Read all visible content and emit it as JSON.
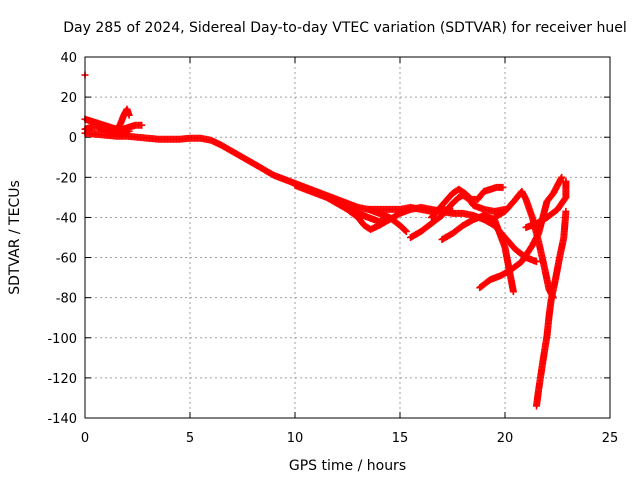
{
  "chart_data": {
    "type": "scatter",
    "title": "Day 285 of 2024, Sidereal Day-to-day VTEC variation (SDTVAR) for receiver huel",
    "xlabel": "GPS time / hours",
    "ylabel": "SDTVAR / TECUs",
    "xlim": [
      0,
      25
    ],
    "ylim": [
      -140,
      40
    ],
    "xticks": [
      0,
      5,
      10,
      15,
      20,
      25
    ],
    "yticks": [
      40,
      20,
      0,
      -20,
      -40,
      -60,
      -80,
      -100,
      -120,
      -140
    ],
    "grid": true,
    "marker": "+",
    "color": "#ff0000",
    "series": [
      {
        "name": "trace-main",
        "points": [
          [
            0.0,
            2
          ],
          [
            0.5,
            1.5
          ],
          [
            1.0,
            1
          ],
          [
            1.5,
            0.5
          ],
          [
            2.0,
            0.5
          ],
          [
            2.5,
            0
          ],
          [
            3.0,
            -0.5
          ],
          [
            3.5,
            -1
          ],
          [
            4.0,
            -1
          ],
          [
            4.5,
            -1
          ],
          [
            5.0,
            -0.5
          ],
          [
            5.5,
            -0.5
          ],
          [
            6.0,
            -1.5
          ],
          [
            6.5,
            -4
          ],
          [
            7.0,
            -7
          ],
          [
            7.5,
            -10
          ],
          [
            8.0,
            -13
          ],
          [
            8.5,
            -16
          ],
          [
            9.0,
            -19
          ],
          [
            9.5,
            -21
          ],
          [
            10.0,
            -23
          ],
          [
            10.5,
            -25
          ],
          [
            11.0,
            -27
          ],
          [
            11.5,
            -29
          ],
          [
            12.0,
            -31
          ],
          [
            12.5,
            -33
          ],
          [
            13.0,
            -35
          ],
          [
            13.5,
            -36
          ],
          [
            14.0,
            -36
          ],
          [
            14.5,
            -36
          ],
          [
            15.0,
            -36
          ],
          [
            15.5,
            -35
          ],
          [
            16.0,
            -36
          ],
          [
            16.5,
            -37
          ],
          [
            17.0,
            -36
          ],
          [
            17.5,
            -37
          ]
        ]
      },
      {
        "name": "trace-start-upper",
        "points": [
          [
            0.0,
            9
          ],
          [
            0.3,
            8
          ],
          [
            0.6,
            7
          ],
          [
            0.9,
            6
          ],
          [
            1.2,
            5
          ],
          [
            1.5,
            4
          ],
          [
            1.8,
            4
          ],
          [
            2.1,
            5
          ],
          [
            2.4,
            6
          ],
          [
            2.7,
            6
          ]
        ]
      },
      {
        "name": "trace-start-lower",
        "points": [
          [
            0.0,
            4
          ],
          [
            0.3,
            5
          ],
          [
            0.6,
            5
          ],
          [
            0.9,
            4
          ],
          [
            1.2,
            3
          ],
          [
            1.5,
            2
          ],
          [
            1.8,
            2
          ],
          [
            2.1,
            3
          ]
        ]
      },
      {
        "name": "trace-start-spike",
        "points": [
          [
            1.5,
            3
          ],
          [
            1.7,
            7
          ],
          [
            1.85,
            11
          ],
          [
            2.0,
            14
          ],
          [
            2.1,
            11
          ]
        ]
      },
      {
        "name": "trace-outlier",
        "points": [
          [
            0.0,
            31
          ]
        ]
      },
      {
        "name": "trace-mid",
        "points": [
          [
            10.0,
            -24
          ],
          [
            10.5,
            -26
          ],
          [
            11.0,
            -28
          ],
          [
            11.5,
            -30
          ],
          [
            12.0,
            -33
          ],
          [
            12.5,
            -36
          ],
          [
            13.0,
            -38
          ],
          [
            13.5,
            -40
          ],
          [
            14.0,
            -42
          ],
          [
            14.5,
            -41
          ],
          [
            15.0,
            -38
          ],
          [
            15.5,
            -36
          ],
          [
            16.0,
            -35
          ],
          [
            16.5,
            -36
          ],
          [
            17.0,
            -37
          ],
          [
            17.5,
            -38
          ],
          [
            18.0,
            -38
          ],
          [
            18.5,
            -39
          ],
          [
            19.0,
            -41
          ],
          [
            19.5,
            -44
          ],
          [
            20.0,
            -50
          ],
          [
            20.5,
            -56
          ],
          [
            21.0,
            -60
          ],
          [
            21.5,
            -62
          ]
        ]
      },
      {
        "name": "trace-branch-a",
        "points": [
          [
            12.5,
            -36
          ],
          [
            13.0,
            -40
          ],
          [
            13.3,
            -44
          ],
          [
            13.6,
            -46
          ],
          [
            14.0,
            -44
          ],
          [
            14.5,
            -41
          ]
        ]
      },
      {
        "name": "trace-branch-b",
        "points": [
          [
            13.5,
            -36
          ],
          [
            14.0,
            -38
          ],
          [
            14.5,
            -40
          ],
          [
            15.0,
            -44
          ],
          [
            15.3,
            -47
          ]
        ]
      },
      {
        "name": "trace-rise",
        "points": [
          [
            15.5,
            -50
          ],
          [
            16.0,
            -47
          ],
          [
            16.5,
            -43
          ],
          [
            17.0,
            -39
          ],
          [
            17.5,
            -33
          ],
          [
            17.8,
            -30
          ],
          [
            18.0,
            -29
          ],
          [
            18.3,
            -31
          ],
          [
            18.5,
            -34
          ],
          [
            19.0,
            -36
          ],
          [
            19.5,
            -37
          ],
          [
            20.0,
            -36
          ]
        ]
      },
      {
        "name": "trace-hump",
        "points": [
          [
            16.5,
            -40
          ],
          [
            17.0,
            -34
          ],
          [
            17.5,
            -28
          ],
          [
            17.8,
            -26
          ],
          [
            18.1,
            -28
          ],
          [
            18.4,
            -31
          ],
          [
            18.7,
            -31
          ],
          [
            19.0,
            -27
          ],
          [
            19.3,
            -26
          ],
          [
            19.6,
            -25
          ],
          [
            19.9,
            -25
          ]
        ]
      },
      {
        "name": "trace-low-arc",
        "points": [
          [
            17.0,
            -51
          ],
          [
            17.5,
            -48
          ],
          [
            18.0,
            -44
          ],
          [
            18.5,
            -41
          ],
          [
            19.0,
            -39
          ],
          [
            19.5,
            -41
          ],
          [
            20.0,
            -55
          ],
          [
            20.2,
            -66
          ],
          [
            20.4,
            -77
          ]
        ]
      },
      {
        "name": "trace-rising-late",
        "points": [
          [
            18.8,
            -75
          ],
          [
            19.3,
            -71
          ],
          [
            19.8,
            -69
          ],
          [
            20.3,
            -66
          ],
          [
            20.8,
            -62
          ],
          [
            21.3,
            -54
          ],
          [
            21.6,
            -48
          ],
          [
            21.8,
            -40
          ],
          [
            22.0,
            -32
          ],
          [
            22.3,
            -28
          ],
          [
            22.7,
            -20
          ]
        ]
      },
      {
        "name": "trace-cross",
        "points": [
          [
            19.5,
            -40
          ],
          [
            20.0,
            -37
          ],
          [
            20.5,
            -31
          ],
          [
            20.8,
            -27
          ],
          [
            21.0,
            -31
          ],
          [
            21.3,
            -40
          ],
          [
            21.6,
            -52
          ],
          [
            21.9,
            -66
          ],
          [
            22.1,
            -76
          ],
          [
            22.3,
            -80
          ]
        ]
      },
      {
        "name": "trace-drop",
        "points": [
          [
            21.5,
            -134
          ],
          [
            21.6,
            -126
          ],
          [
            21.8,
            -112
          ],
          [
            22.0,
            -99
          ],
          [
            22.1,
            -89
          ],
          [
            22.2,
            -81
          ],
          [
            22.4,
            -71
          ],
          [
            22.6,
            -60
          ],
          [
            22.8,
            -50
          ],
          [
            22.9,
            -37
          ]
        ]
      },
      {
        "name": "trace-end-loop",
        "points": [
          [
            21.0,
            -45
          ],
          [
            21.5,
            -43
          ],
          [
            22.0,
            -40
          ],
          [
            22.5,
            -36
          ],
          [
            22.9,
            -30
          ],
          [
            22.9,
            -22
          ]
        ]
      }
    ]
  }
}
